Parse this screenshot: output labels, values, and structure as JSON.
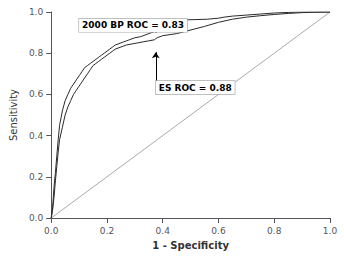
{
  "chart_data": {
    "type": "line",
    "xlabel": "1 - Specificity",
    "ylabel": "Sensitivity",
    "xlim": [
      0.0,
      1.0
    ],
    "ylim": [
      0.0,
      1.0
    ],
    "xticks": [
      {
        "value": 0.0,
        "label": "0.0"
      },
      0.2,
      0.4,
      0.6,
      0.8,
      {
        "value": 1.0,
        "label": "1.0"
      }
    ],
    "yticks": [
      {
        "value": 0.0,
        "label": "0.0"
      },
      0.2,
      0.4,
      0.6,
      0.8,
      {
        "value": 1.0,
        "label": "1.0"
      }
    ],
    "grid": false,
    "series": [
      {
        "x": [
          0,
          1
        ],
        "values": [
          0,
          1
        ],
        "color": "#a0a0a0"
      },
      {
        "x": [
          0.0,
          0.005,
          0.01,
          0.015,
          0.02,
          0.025,
          0.03,
          0.04,
          0.05,
          0.06,
          0.07,
          0.08,
          0.09,
          0.1,
          0.11,
          0.12,
          0.13,
          0.14,
          0.15,
          0.16,
          0.17,
          0.18,
          0.19,
          0.2,
          0.21,
          0.22,
          0.23,
          0.24,
          0.25,
          0.26,
          0.27,
          0.28,
          0.3,
          0.32,
          0.34,
          0.36,
          0.38,
          0.395,
          0.4,
          0.42,
          0.44,
          0.56,
          0.6,
          0.62,
          0.65,
          0.7,
          0.75,
          0.8,
          0.85,
          0.9,
          0.95,
          1.0
        ],
        "values": [
          0.0,
          0.05,
          0.15,
          0.22,
          0.3,
          0.38,
          0.45,
          0.52,
          0.57,
          0.6,
          0.63,
          0.65,
          0.67,
          0.69,
          0.71,
          0.73,
          0.74,
          0.75,
          0.76,
          0.77,
          0.78,
          0.79,
          0.8,
          0.81,
          0.82,
          0.83,
          0.84,
          0.845,
          0.85,
          0.855,
          0.86,
          0.865,
          0.875,
          0.88,
          0.89,
          0.9,
          0.91,
          0.915,
          0.92,
          0.955,
          0.96,
          0.965,
          0.97,
          0.975,
          0.98,
          0.985,
          0.99,
          0.995,
          0.998,
          1.0,
          1.0,
          1.0
        ],
        "color": "#2a2a2a"
      },
      {
        "x": [
          0.0,
          0.005,
          0.01,
          0.015,
          0.02,
          0.025,
          0.03,
          0.04,
          0.05,
          0.06,
          0.07,
          0.08,
          0.09,
          0.1,
          0.11,
          0.12,
          0.13,
          0.14,
          0.15,
          0.16,
          0.17,
          0.18,
          0.19,
          0.2,
          0.21,
          0.22,
          0.23,
          0.25,
          0.27,
          0.29,
          0.31,
          0.33,
          0.35,
          0.37,
          0.375,
          0.38,
          0.4,
          0.45,
          0.55,
          0.6,
          0.65,
          0.7,
          0.75,
          0.8,
          0.85,
          0.9,
          0.95,
          1.0
        ],
        "values": [
          0.0,
          0.04,
          0.1,
          0.18,
          0.25,
          0.32,
          0.38,
          0.44,
          0.5,
          0.54,
          0.57,
          0.6,
          0.62,
          0.64,
          0.66,
          0.68,
          0.7,
          0.72,
          0.74,
          0.75,
          0.76,
          0.77,
          0.78,
          0.79,
          0.8,
          0.81,
          0.82,
          0.83,
          0.84,
          0.845,
          0.85,
          0.855,
          0.86,
          0.865,
          0.87,
          0.875,
          0.885,
          0.895,
          0.93,
          0.95,
          0.965,
          0.975,
          0.982,
          0.988,
          0.993,
          0.997,
          0.999,
          1.0
        ],
        "color": "#2a2a2a"
      }
    ],
    "annotations": [
      {
        "text": "2000 BP ROC = 0.83",
        "x": 0.395,
        "y": 0.915,
        "text_x": 0.1,
        "text_y": 0.935
      },
      {
        "text": "ES ROC = 0.88",
        "x": 0.375,
        "y": 0.805,
        "text_x": 0.375,
        "text_y": 0.665
      }
    ]
  }
}
